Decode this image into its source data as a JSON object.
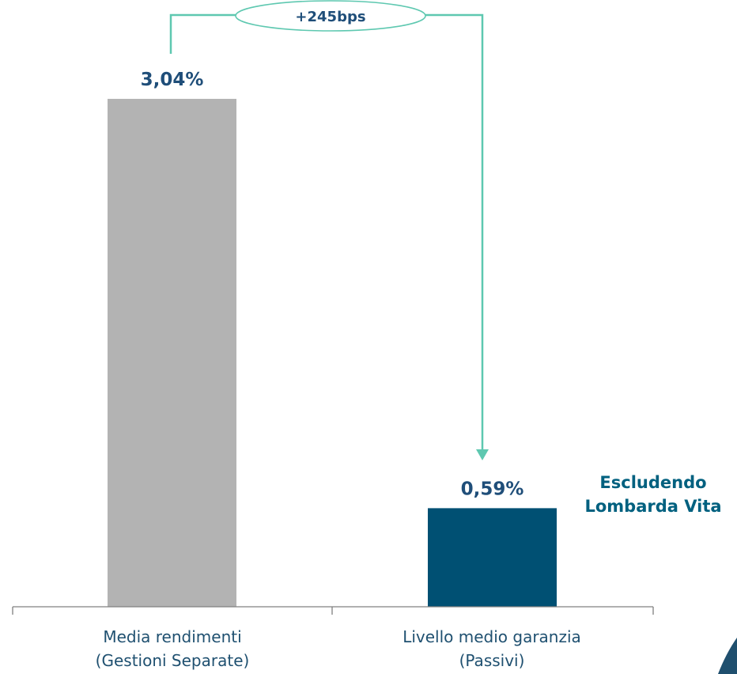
{
  "chart_data": {
    "type": "bar",
    "categories": [
      [
        "Media rendimenti",
        "(Gestioni Separate)"
      ],
      [
        "Livello medio garanzia",
        "(Passivi)"
      ]
    ],
    "values": [
      3.04,
      0.59
    ],
    "value_labels": [
      "3,04%",
      "0,59%"
    ],
    "ylim": [
      0,
      3.4
    ],
    "grid": false,
    "annotation": {
      "difference_label": "+245bps"
    },
    "note": [
      "Escludendo",
      "Lombarda Vita"
    ]
  },
  "colors": {
    "bar_1": "#b3b3b3",
    "bar_2": "#005073",
    "value_text": "#1f4e79",
    "note_text": "#00607f",
    "connector": "#5ec8b0",
    "axis": "#808080",
    "corner_accent": "#1f4f6e"
  }
}
